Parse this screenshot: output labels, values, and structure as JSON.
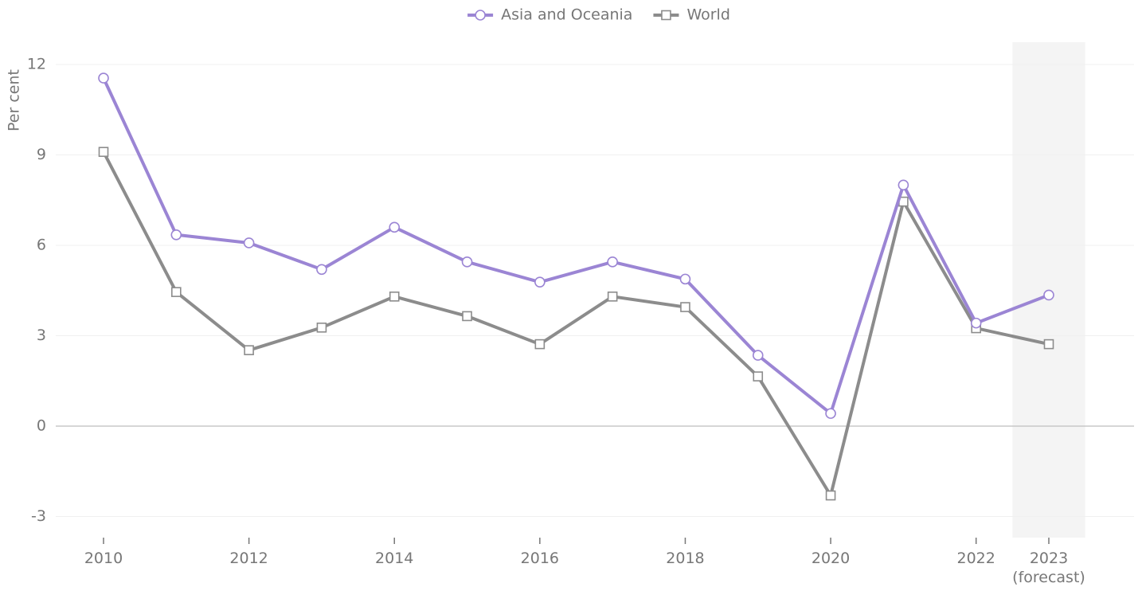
{
  "chart_data": {
    "type": "line",
    "y_label": "Per cent",
    "categories": [
      "2010",
      null,
      "2012",
      null,
      "2014",
      null,
      "2016",
      null,
      "2018",
      null,
      "2020",
      null,
      "2022",
      "2023\n(forecast)"
    ],
    "series": [
      {
        "name": "Asia and Oceania",
        "color": "#9b85d4",
        "marker": "circle",
        "values": [
          11.55,
          6.35,
          6.08,
          5.2,
          6.6,
          5.45,
          4.78,
          5.45,
          4.88,
          2.35,
          0.42,
          8.0,
          3.42,
          4.35
        ]
      },
      {
        "name": "World",
        "color": "#8c8c8c",
        "marker": "square",
        "values": [
          9.1,
          4.45,
          2.52,
          3.27,
          4.3,
          3.65,
          2.72,
          4.3,
          3.95,
          1.65,
          -2.3,
          7.45,
          3.25,
          2.72
        ]
      }
    ],
    "ylim": [
      -3.7,
      12.74
    ],
    "yticks": [
      -3,
      0,
      3,
      6,
      9,
      12
    ],
    "grid": true,
    "legend": "top"
  }
}
